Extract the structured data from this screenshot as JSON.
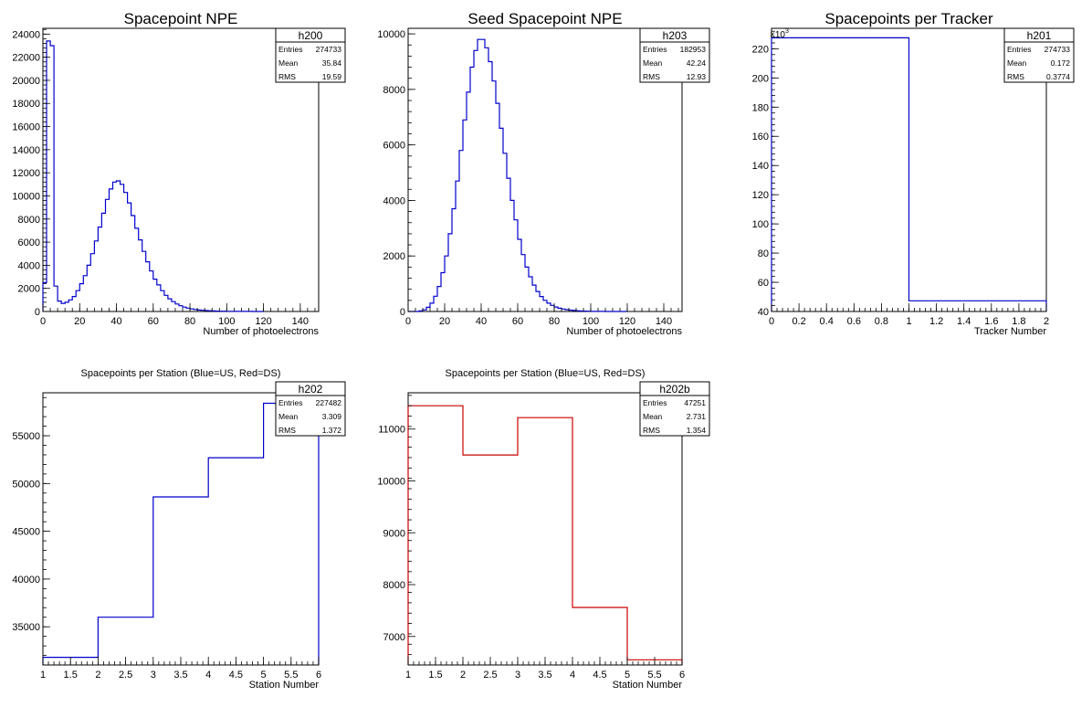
{
  "colors": {
    "us": "#0000cc",
    "ds": "#cc0000",
    "axis": "#000000"
  },
  "chart_data": [
    {
      "id": "h200",
      "type": "bar",
      "title": "Spacepoint NPE",
      "xlabel": "Number of photoelectrons",
      "ylabel": "",
      "xlim": [
        0,
        150
      ],
      "ylim": [
        0,
        24500
      ],
      "xticks": [
        0,
        20,
        40,
        60,
        80,
        100,
        120,
        140
      ],
      "xtick_labels": [
        "0",
        "20",
        "40",
        "60",
        "80",
        "100",
        "120",
        "140"
      ],
      "yticks": [
        0,
        2000,
        4000,
        6000,
        8000,
        10000,
        12000,
        14000,
        16000,
        18000,
        20000,
        22000,
        24000
      ],
      "ytick_labels": [
        "0",
        "2000",
        "4000",
        "6000",
        "8000",
        "10000",
        "12000",
        "14000",
        "16000",
        "18000",
        "20000",
        "22000",
        "24000"
      ],
      "bin_width": 2,
      "values": [
        2500,
        23400,
        23000,
        2200,
        900,
        700,
        800,
        1000,
        1300,
        1800,
        2400,
        3100,
        4000,
        5000,
        6100,
        7300,
        8500,
        9700,
        10600,
        11200,
        11300,
        11000,
        10300,
        9400,
        8300,
        7200,
        6200,
        5200,
        4300,
        3500,
        2800,
        2300,
        1800,
        1400,
        1100,
        850,
        650,
        500,
        380,
        290,
        220,
        170,
        130,
        100,
        80,
        60,
        45,
        35,
        25,
        20,
        15,
        12,
        10,
        8,
        6,
        5,
        4,
        3,
        2,
        0
      ],
      "color": "us",
      "stats": {
        "name": "h200",
        "entries_label": "Entries",
        "entries": "274733",
        "mean_label": "Mean",
        "mean": "35.84",
        "rms_label": "RMS",
        "rms": "19.59"
      }
    },
    {
      "id": "h203",
      "type": "bar",
      "title": "Seed Spacepoint NPE",
      "xlabel": "Number of photoelectrons",
      "ylabel": "",
      "xlim": [
        0,
        150
      ],
      "ylim": [
        0,
        10200
      ],
      "xticks": [
        0,
        20,
        40,
        60,
        80,
        100,
        120,
        140
      ],
      "xtick_labels": [
        "0",
        "20",
        "40",
        "60",
        "80",
        "100",
        "120",
        "140"
      ],
      "yticks": [
        0,
        2000,
        4000,
        6000,
        8000,
        10000
      ],
      "ytick_labels": [
        "0",
        "2000",
        "4000",
        "6000",
        "8000",
        "10000"
      ],
      "bin_width": 2,
      "values": [
        0,
        0,
        0,
        20,
        60,
        150,
        300,
        550,
        900,
        1400,
        2000,
        2800,
        3700,
        4700,
        5800,
        6900,
        7900,
        8800,
        9400,
        9800,
        9800,
        9500,
        9000,
        8300,
        7500,
        6600,
        5700,
        4800,
        4000,
        3300,
        2600,
        2050,
        1600,
        1250,
        950,
        720,
        540,
        400,
        300,
        220,
        160,
        120,
        90,
        65,
        48,
        35,
        25,
        18,
        13,
        9,
        6,
        4,
        3,
        2,
        1,
        0,
        0,
        0,
        0,
        0
      ],
      "color": "us",
      "stats": {
        "name": "h203",
        "entries_label": "Entries",
        "entries": "182953",
        "mean_label": "Mean",
        "mean": "42.24",
        "rms_label": "RMS",
        "rms": "12.93"
      }
    },
    {
      "id": "h201",
      "type": "bar",
      "title": "Spacepoints per Tracker",
      "xlabel": "Tracker Number",
      "ylabel": "",
      "exponent_label": "×10",
      "exponent_power": "3",
      "xlim": [
        0,
        2
      ],
      "ylim": [
        40,
        234
      ],
      "xticks": [
        0,
        0.2,
        0.4,
        0.6,
        0.8,
        1,
        1.2,
        1.4,
        1.6,
        1.8,
        2
      ],
      "xtick_labels": [
        "0",
        "0.2",
        "0.4",
        "0.6",
        "0.8",
        "1",
        "1.2",
        "1.4",
        "1.6",
        "1.8",
        "2"
      ],
      "yticks": [
        40,
        60,
        80,
        100,
        120,
        140,
        160,
        180,
        200,
        220
      ],
      "ytick_labels": [
        "40",
        "60",
        "80",
        "100",
        "120",
        "140",
        "160",
        "180",
        "200",
        "220"
      ],
      "bin_edges": [
        0,
        1,
        2
      ],
      "values": [
        227.5,
        47.3
      ],
      "color": "us",
      "stats": {
        "name": "h201",
        "entries_label": "Entries",
        "entries": "274733",
        "mean_label": "Mean",
        "mean": "0.172",
        "rms_label": "RMS",
        "rms": "0.3774"
      }
    },
    {
      "id": "h202",
      "type": "bar",
      "title": "Spacepoints per Station (Blue=US, Red=DS)",
      "xlabel": "Station Number",
      "ylabel": "",
      "xlim": [
        1,
        6
      ],
      "ylim": [
        31000,
        59500
      ],
      "xticks": [
        1,
        1.5,
        2,
        2.5,
        3,
        3.5,
        4,
        4.5,
        5,
        5.5,
        6
      ],
      "xtick_labels": [
        "1",
        "1.5",
        "2",
        "2.5",
        "3",
        "3.5",
        "4",
        "4.5",
        "5",
        "5.5",
        "6"
      ],
      "yticks": [
        35000,
        40000,
        45000,
        50000,
        55000
      ],
      "ytick_labels": [
        "35000",
        "40000",
        "45000",
        "50000",
        "55000"
      ],
      "bin_edges": [
        1,
        2,
        3,
        4,
        5,
        6
      ],
      "values": [
        31800,
        36000,
        48600,
        52700,
        58400
      ],
      "color": "us",
      "stats": {
        "name": "h202",
        "entries_label": "Entries",
        "entries": "227482",
        "mean_label": "Mean",
        "mean": "3.309",
        "rms_label": "RMS",
        "rms": "1.372"
      }
    },
    {
      "id": "h202b",
      "type": "bar",
      "title": "Spacepoints per Station (Blue=US, Red=DS)",
      "xlabel": "Station Number",
      "ylabel": "",
      "xlim": [
        1,
        6
      ],
      "ylim": [
        6450,
        11700
      ],
      "xticks": [
        1,
        1.5,
        2,
        2.5,
        3,
        3.5,
        4,
        4.5,
        5,
        5.5,
        6
      ],
      "xtick_labels": [
        "1",
        "1.5",
        "2",
        "2.5",
        "3",
        "3.5",
        "4",
        "4.5",
        "5",
        "5.5",
        "6"
      ],
      "yticks": [
        7000,
        8000,
        9000,
        10000,
        11000
      ],
      "ytick_labels": [
        "7000",
        "8000",
        "9000",
        "10000",
        "11000"
      ],
      "bin_edges": [
        1,
        2,
        3,
        4,
        5,
        6
      ],
      "values": [
        11450,
        10500,
        11220,
        7560,
        6550
      ],
      "color": "ds",
      "stats": {
        "name": "h202b",
        "entries_label": "Entries",
        "entries": "47251",
        "mean_label": "Mean",
        "mean": "2.731",
        "rms_label": "RMS",
        "rms": "1.354"
      }
    }
  ]
}
